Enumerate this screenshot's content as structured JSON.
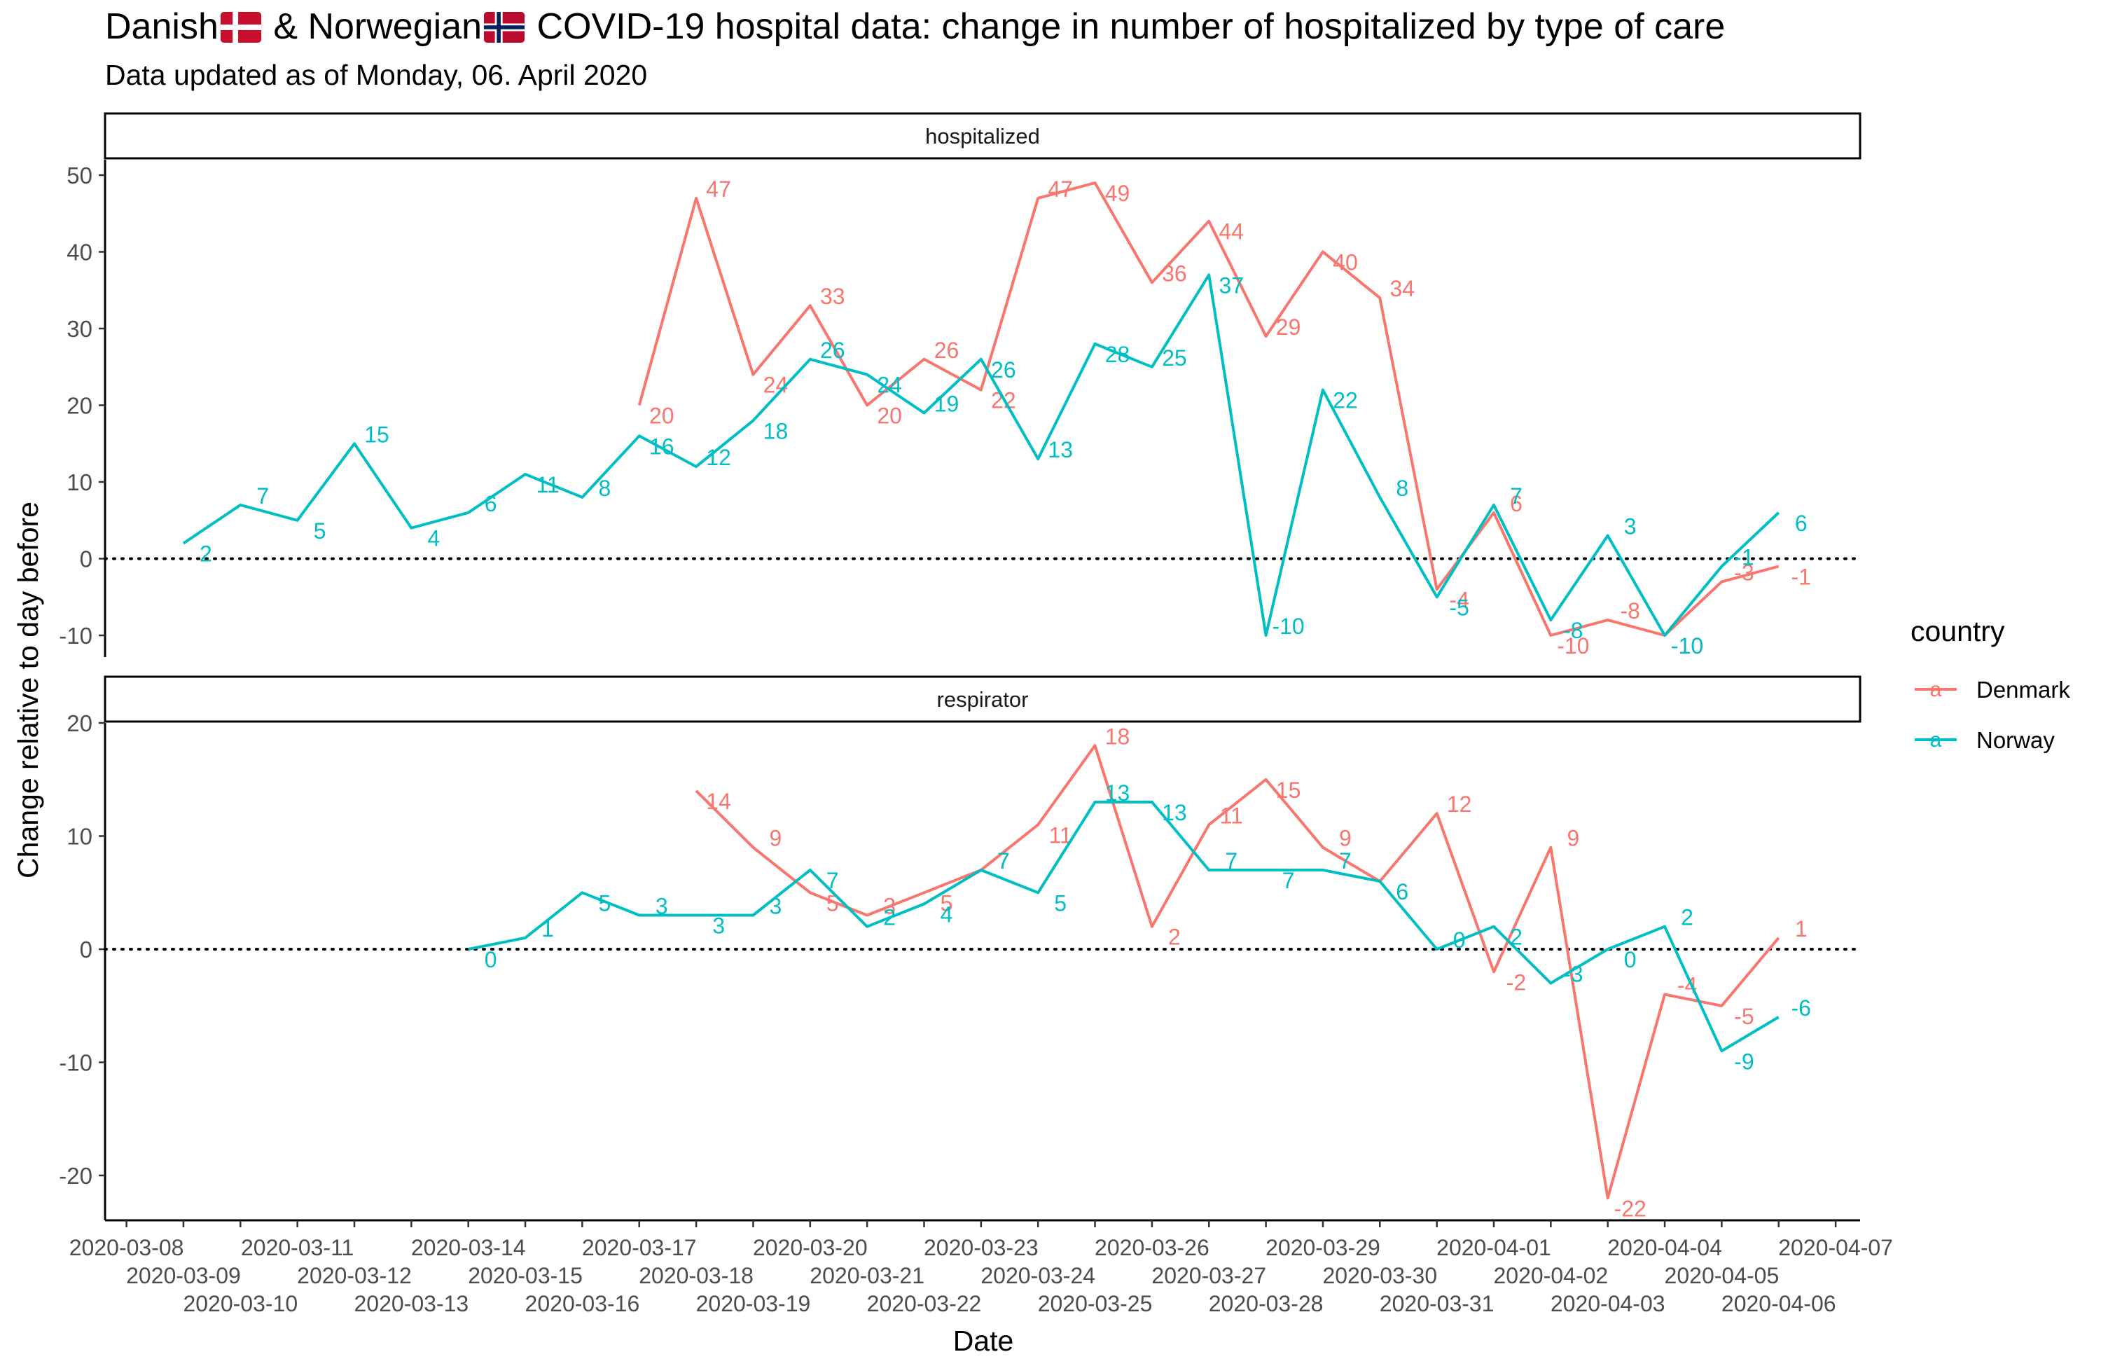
{
  "title_parts": {
    "part1": "Danish",
    "part2": " & Norwegian",
    "part3": " COVID-19 hospital data: change in number of hospitalized by type of care"
  },
  "subtitle": "Data updated as of Monday, 06. April 2020",
  "chart_data": {
    "type": "line",
    "xlabel": "Date",
    "ylabel": "Change relative to day before",
    "x_tick_labels": [
      "2020-03-08",
      "2020-03-09",
      "2020-03-10",
      "2020-03-11",
      "2020-03-12",
      "2020-03-13",
      "2020-03-14",
      "2020-03-15",
      "2020-03-16",
      "2020-03-17",
      "2020-03-18",
      "2020-03-19",
      "2020-03-20",
      "2020-03-21",
      "2020-03-22",
      "2020-03-23",
      "2020-03-24",
      "2020-03-25",
      "2020-03-26",
      "2020-03-27",
      "2020-03-28",
      "2020-03-29",
      "2020-03-30",
      "2020-03-31",
      "2020-04-01",
      "2020-04-02",
      "2020-04-03",
      "2020-04-04",
      "2020-04-05",
      "2020-04-06",
      "2020-04-07"
    ],
    "legend": {
      "title": "country",
      "position": "right",
      "key_glyph": "a",
      "entries": [
        {
          "name": "Denmark",
          "color": "#F8766D"
        },
        {
          "name": "Norway",
          "color": "#00BFC4"
        }
      ]
    },
    "reference_line": 0,
    "grid": false,
    "panels": [
      {
        "facet": "hospitalized",
        "ylim": [
          -13,
          52
        ],
        "yticks": [
          -10,
          0,
          10,
          20,
          30,
          40,
          50
        ],
        "series": [
          {
            "name": "Denmark",
            "color": "#F8766D",
            "x": [
              "2020-03-17",
              "2020-03-18",
              "2020-03-19",
              "2020-03-20",
              "2020-03-21",
              "2020-03-22",
              "2020-03-23",
              "2020-03-24",
              "2020-03-25",
              "2020-03-26",
              "2020-03-27",
              "2020-03-28",
              "2020-03-29",
              "2020-03-30",
              "2020-03-31",
              "2020-04-01",
              "2020-04-02",
              "2020-04-03",
              "2020-04-04",
              "2020-04-05",
              "2020-04-06"
            ],
            "y": [
              20,
              47,
              24,
              33,
              20,
              26,
              22,
              47,
              49,
              36,
              44,
              29,
              40,
              34,
              -4,
              6,
              -10,
              -8,
              -10,
              -3,
              -1
            ]
          },
          {
            "name": "Norway",
            "color": "#00BFC4",
            "x": [
              "2020-03-09",
              "2020-03-10",
              "2020-03-11",
              "2020-03-12",
              "2020-03-13",
              "2020-03-14",
              "2020-03-15",
              "2020-03-16",
              "2020-03-17",
              "2020-03-18",
              "2020-03-19",
              "2020-03-20",
              "2020-03-21",
              "2020-03-22",
              "2020-03-23",
              "2020-03-24",
              "2020-03-25",
              "2020-03-26",
              "2020-03-27",
              "2020-03-28",
              "2020-03-29",
              "2020-03-30",
              "2020-03-31",
              "2020-04-01",
              "2020-04-02",
              "2020-04-03",
              "2020-04-04",
              "2020-04-05",
              "2020-04-06"
            ],
            "y": [
              2,
              7,
              5,
              15,
              4,
              6,
              11,
              8,
              16,
              12,
              18,
              26,
              24,
              19,
              26,
              13,
              28,
              25,
              37,
              -10,
              22,
              8,
              -5,
              7,
              -8,
              3,
              -10,
              -1,
              6
            ]
          }
        ]
      },
      {
        "facet": "respirator",
        "ylim": [
          -24,
          20
        ],
        "yticks": [
          -20,
          -10,
          0,
          10,
          20
        ],
        "series": [
          {
            "name": "Denmark",
            "color": "#F8766D",
            "x": [
              "2020-03-18",
              "2020-03-19",
              "2020-03-20",
              "2020-03-21",
              "2020-03-22",
              "2020-03-23",
              "2020-03-24",
              "2020-03-25",
              "2020-03-26",
              "2020-03-27",
              "2020-03-28",
              "2020-03-29",
              "2020-03-30",
              "2020-03-31",
              "2020-04-01",
              "2020-04-02",
              "2020-04-03",
              "2020-04-04",
              "2020-04-05",
              "2020-04-06"
            ],
            "y": [
              14,
              9,
              5,
              3,
              5,
              7,
              11,
              18,
              2,
              11,
              15,
              9,
              6,
              12,
              -2,
              9,
              -22,
              -4,
              -5,
              1
            ]
          },
          {
            "name": "Norway",
            "color": "#00BFC4",
            "x": [
              "2020-03-14",
              "2020-03-15",
              "2020-03-16",
              "2020-03-17",
              "2020-03-18",
              "2020-03-19",
              "2020-03-20",
              "2020-03-21",
              "2020-03-22",
              "2020-03-23",
              "2020-03-24",
              "2020-03-25",
              "2020-03-26",
              "2020-03-27",
              "2020-03-28",
              "2020-03-29",
              "2020-03-30",
              "2020-03-31",
              "2020-04-01",
              "2020-04-02",
              "2020-04-03",
              "2020-04-04",
              "2020-04-05",
              "2020-04-06"
            ],
            "y": [
              0,
              1,
              5,
              3,
              3,
              3,
              7,
              2,
              4,
              7,
              5,
              13,
              13,
              7,
              7,
              7,
              6,
              0,
              2,
              -3,
              0,
              2,
              -9,
              -6
            ]
          }
        ]
      }
    ]
  }
}
